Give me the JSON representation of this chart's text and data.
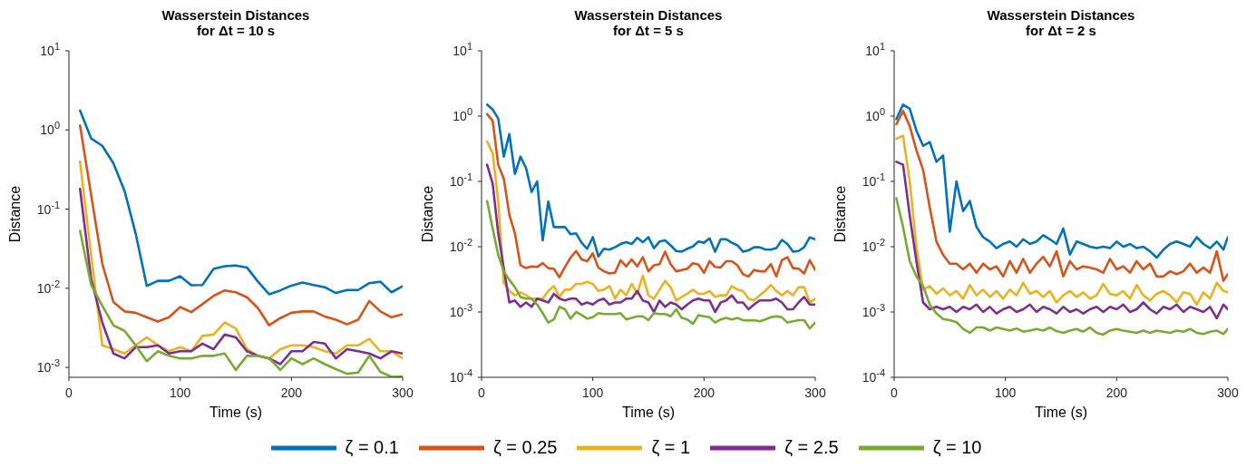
{
  "chart_data": [
    {
      "type": "line",
      "title": "Wasserstein Distances\nfor Δt = 10 s",
      "xlabel": "Time (s)",
      "ylabel": "Distance",
      "log": "y",
      "legend": "bottom",
      "xlim": [
        0,
        300
      ],
      "xticks": [
        0,
        100,
        200,
        300
      ],
      "ylim": [
        0.00075,
        10
      ],
      "yticks": [
        {
          "value": 10,
          "label": "10$^{1}$"
        },
        {
          "value": 1,
          "label": "10$^{0}$"
        },
        {
          "value": 0.1,
          "label": "10$^{-1}$"
        },
        {
          "value": 0.01,
          "label": "10$^{-2}$"
        },
        {
          "value": 0.001,
          "label": "10$^{-3}$"
        }
      ],
      "x": [
        10,
        20,
        30,
        40,
        50,
        60,
        70,
        80,
        90,
        100,
        110,
        120,
        130,
        140,
        150,
        160,
        170,
        180,
        190,
        200,
        210,
        220,
        230,
        240,
        250,
        260,
        270,
        280,
        290,
        300
      ],
      "series": [
        {
          "name": "ζ = 0.1",
          "color": "#0072bd",
          "values": [
            1.76,
            0.78,
            0.63,
            0.38,
            0.17,
            0.049,
            0.0107,
            0.0124,
            0.0124,
            0.0142,
            0.0109,
            0.011,
            0.0175,
            0.019,
            0.0194,
            0.0183,
            0.0121,
            0.0084,
            0.0094,
            0.0108,
            0.0118,
            0.011,
            0.0103,
            0.0087,
            0.0095,
            0.0095,
            0.0116,
            0.0121,
            0.0089,
            0.0106
          ]
        },
        {
          "name": "ζ = 0.25",
          "color": "#d95319",
          "values": [
            1.14,
            0.15,
            0.0204,
            0.0067,
            0.0051,
            0.0049,
            0.0043,
            0.0038,
            0.0043,
            0.0058,
            0.005,
            0.0063,
            0.008,
            0.0094,
            0.0089,
            0.0077,
            0.0056,
            0.0034,
            0.0042,
            0.0049,
            0.0051,
            0.0051,
            0.0044,
            0.004,
            0.0035,
            0.004,
            0.0069,
            0.0051,
            0.0043,
            0.0047
          ]
        },
        {
          "name": "ζ = 1",
          "color": "#edb120",
          "values": [
            0.4,
            0.026,
            0.0019,
            0.0017,
            0.0015,
            0.0019,
            0.0024,
            0.0019,
            0.0016,
            0.0018,
            0.0016,
            0.0025,
            0.0026,
            0.0037,
            0.0031,
            0.0017,
            0.0014,
            0.0013,
            0.0017,
            0.0019,
            0.0019,
            0.0018,
            0.0016,
            0.0015,
            0.0019,
            0.0019,
            0.0023,
            0.0016,
            0.0016,
            0.0013
          ]
        },
        {
          "name": "ζ = 2.5",
          "color": "#7e2f8e",
          "values": [
            0.18,
            0.013,
            0.0037,
            0.0015,
            0.0013,
            0.0018,
            0.0018,
            0.0019,
            0.0015,
            0.0016,
            0.0016,
            0.002,
            0.0017,
            0.0026,
            0.0024,
            0.0016,
            0.0014,
            0.0013,
            0.0011,
            0.0016,
            0.0016,
            0.0021,
            0.002,
            0.0013,
            0.0017,
            0.0016,
            0.0015,
            0.0013,
            0.0016,
            0.0015
          ]
        },
        {
          "name": "ζ = 10",
          "color": "#77ac30",
          "values": [
            0.053,
            0.011,
            0.006,
            0.0034,
            0.0029,
            0.0019,
            0.0012,
            0.0016,
            0.0014,
            0.0013,
            0.0013,
            0.0014,
            0.0014,
            0.0015,
            0.00093,
            0.0014,
            0.0014,
            0.0013,
            0.00093,
            0.0013,
            0.0011,
            0.0013,
            0.0011,
            0.00095,
            0.00083,
            0.00086,
            0.0014,
            0.00088,
            0.00076,
            0.00077
          ]
        }
      ]
    },
    {
      "type": "line",
      "title": "Wasserstein Distances\nfor Δt = 5 s",
      "xlabel": "Time (s)",
      "ylabel": "Distance",
      "log": "y",
      "xlim": [
        0,
        300
      ],
      "xticks": [
        0,
        100,
        200,
        300
      ],
      "ylim": [
        0.0001,
        10
      ],
      "yticks": [
        {
          "value": 10,
          "label": "10$^{1}$"
        },
        {
          "value": 1,
          "label": "10$^{0}$"
        },
        {
          "value": 0.1,
          "label": "10$^{-1}$"
        },
        {
          "value": 0.01,
          "label": "10$^{-2}$"
        },
        {
          "value": 0.001,
          "label": "10$^{-3}$"
        },
        {
          "value": 0.0001,
          "label": "10$^{-4}$"
        }
      ],
      "x": [
        5,
        10,
        15,
        20,
        25,
        30,
        35,
        40,
        45,
        50,
        55,
        60,
        65,
        70,
        75,
        80,
        85,
        90,
        95,
        100,
        105,
        110,
        115,
        120,
        125,
        130,
        135,
        140,
        145,
        150,
        155,
        160,
        165,
        170,
        175,
        180,
        185,
        190,
        195,
        200,
        205,
        210,
        215,
        220,
        225,
        230,
        235,
        240,
        245,
        250,
        255,
        260,
        265,
        270,
        275,
        280,
        285,
        290,
        295,
        300
      ],
      "series": [
        {
          "color": "#0072bd",
          "values": [
            1.5,
            1.26,
            0.92,
            0.24,
            0.53,
            0.13,
            0.24,
            0.16,
            0.069,
            0.1,
            0.0125,
            0.049,
            0.02,
            0.02,
            0.02,
            0.0155,
            0.016,
            0.0115,
            0.0093,
            0.014,
            0.0071,
            0.0093,
            0.009,
            0.0098,
            0.011,
            0.0117,
            0.011,
            0.0137,
            0.0117,
            0.014,
            0.0095,
            0.012,
            0.0125,
            0.0105,
            0.0086,
            0.0084,
            0.0093,
            0.0101,
            0.012,
            0.0115,
            0.0134,
            0.0084,
            0.013,
            0.013,
            0.0115,
            0.0105,
            0.0084,
            0.0088,
            0.0098,
            0.0098,
            0.0091,
            0.009,
            0.0095,
            0.0127,
            0.011,
            0.0084,
            0.0086,
            0.0098,
            0.0139,
            0.013
          ]
        },
        {
          "color": "#d95319",
          "values": [
            1.07,
            0.85,
            0.18,
            0.11,
            0.031,
            0.016,
            0.0052,
            0.0047,
            0.005,
            0.0049,
            0.0056,
            0.0047,
            0.0046,
            0.0034,
            0.0049,
            0.0068,
            0.0086,
            0.0064,
            0.006,
            0.0079,
            0.0048,
            0.0042,
            0.0039,
            0.004,
            0.0062,
            0.005,
            0.0064,
            0.005,
            0.0069,
            0.0042,
            0.0052,
            0.0054,
            0.0084,
            0.0054,
            0.0042,
            0.0044,
            0.0046,
            0.0056,
            0.0053,
            0.004,
            0.006,
            0.0049,
            0.0048,
            0.006,
            0.006,
            0.0052,
            0.0038,
            0.0035,
            0.0044,
            0.0042,
            0.0042,
            0.0054,
            0.0035,
            0.0062,
            0.0069,
            0.0047,
            0.0046,
            0.0039,
            0.0062,
            0.0044
          ]
        },
        {
          "color": "#edb120",
          "values": [
            0.41,
            0.27,
            0.05,
            0.0028,
            0.0021,
            0.0018,
            0.002,
            0.0018,
            0.0016,
            0.0016,
            0.0016,
            0.0021,
            0.0025,
            0.0017,
            0.0022,
            0.0022,
            0.0027,
            0.0027,
            0.0029,
            0.0027,
            0.0021,
            0.0022,
            0.0025,
            0.0016,
            0.0022,
            0.0018,
            0.0027,
            0.0019,
            0.0036,
            0.0018,
            0.0016,
            0.0022,
            0.003,
            0.0024,
            0.0015,
            0.0017,
            0.0019,
            0.0022,
            0.0019,
            0.0019,
            0.0021,
            0.0017,
            0.0018,
            0.0018,
            0.0025,
            0.0022,
            0.0021,
            0.0016,
            0.0015,
            0.0018,
            0.0021,
            0.0026,
            0.0021,
            0.0018,
            0.0021,
            0.0018,
            0.0024,
            0.0024,
            0.0014,
            0.0016
          ]
        },
        {
          "color": "#7e2f8e",
          "values": [
            0.18,
            0.093,
            0.016,
            0.0047,
            0.0014,
            0.0015,
            0.0012,
            0.0014,
            0.0012,
            0.0016,
            0.0015,
            0.0014,
            0.0019,
            0.0016,
            0.0015,
            0.0016,
            0.0016,
            0.0013,
            0.0014,
            0.0013,
            0.0015,
            0.0016,
            0.0013,
            0.0014,
            0.0014,
            0.0016,
            0.0016,
            0.0021,
            0.0015,
            0.0014,
            0.001,
            0.0015,
            0.0012,
            0.0014,
            0.0013,
            0.0011,
            0.0013,
            0.0015,
            0.0016,
            0.0015,
            0.0015,
            0.001,
            0.0014,
            0.0015,
            0.0018,
            0.0014,
            0.0014,
            0.0011,
            0.0013,
            0.0015,
            0.0015,
            0.0015,
            0.0016,
            0.0014,
            0.0011,
            0.0011,
            0.0014,
            0.0017,
            0.0013,
            0.0013
          ]
        },
        {
          "color": "#77ac30",
          "values": [
            0.05,
            0.019,
            0.0075,
            0.0042,
            0.0031,
            0.0024,
            0.0017,
            0.0016,
            0.0016,
            0.0013,
            0.00096,
            0.00069,
            0.00077,
            0.0012,
            0.0011,
            0.00079,
            0.001,
            0.0009,
            0.00079,
            0.00083,
            0.00096,
            0.00093,
            0.00093,
            0.00093,
            0.00096,
            0.00077,
            0.00081,
            0.00086,
            0.00086,
            0.00075,
            0.00096,
            0.00093,
            0.00093,
            0.00086,
            0.0011,
            0.00081,
            0.00077,
            0.00066,
            0.00089,
            0.00086,
            0.00083,
            0.00069,
            0.00077,
            0.00081,
            0.00077,
            0.00081,
            0.00075,
            0.00074,
            0.00075,
            0.00072,
            0.00077,
            0.00083,
            0.00086,
            0.00083,
            0.00069,
            0.00072,
            0.00075,
            0.00075,
            0.00056,
            0.00069
          ]
        }
      ]
    },
    {
      "type": "line",
      "title": "Wasserstein Distances\nfor Δt = 2 s",
      "xlabel": "Time (s)",
      "ylabel": "Distance",
      "log": "y",
      "xlim": [
        0,
        300
      ],
      "xticks": [
        0,
        100,
        200,
        300
      ],
      "ylim": [
        0.0001,
        10
      ],
      "yticks": [
        {
          "value": 10,
          "label": "10$^{1}$"
        },
        {
          "value": 1,
          "label": "10$^{0}$"
        },
        {
          "value": 0.1,
          "label": "10$^{-1}$"
        },
        {
          "value": 0.01,
          "label": "10$^{-2}$"
        },
        {
          "value": 0.001,
          "label": "10$^{-3}$"
        },
        {
          "value": 0.0001,
          "label": "10$^{-4}$"
        }
      ],
      "x": [
        2,
        8,
        14,
        20,
        26,
        32,
        38,
        44,
        50,
        56,
        62,
        68,
        74,
        80,
        86,
        92,
        98,
        104,
        110,
        116,
        122,
        128,
        134,
        140,
        146,
        152,
        158,
        164,
        170,
        176,
        182,
        188,
        194,
        200,
        206,
        212,
        218,
        224,
        230,
        236,
        242,
        248,
        254,
        260,
        266,
        272,
        278,
        284,
        290,
        296,
        300
      ],
      "series": [
        {
          "color": "#0072bd",
          "values": [
            0.9,
            1.5,
            1.3,
            0.6,
            0.35,
            0.4,
            0.2,
            0.25,
            0.017,
            0.1,
            0.035,
            0.05,
            0.02,
            0.014,
            0.012,
            0.0095,
            0.011,
            0.012,
            0.01,
            0.013,
            0.011,
            0.012,
            0.015,
            0.013,
            0.011,
            0.019,
            0.0076,
            0.012,
            0.011,
            0.01,
            0.0095,
            0.01,
            0.0095,
            0.012,
            0.01,
            0.011,
            0.0095,
            0.01,
            0.0085,
            0.0068,
            0.009,
            0.011,
            0.012,
            0.011,
            0.01,
            0.014,
            0.011,
            0.0095,
            0.012,
            0.009,
            0.014
          ]
        },
        {
          "color": "#d95319",
          "values": [
            0.75,
            1.2,
            0.7,
            0.3,
            0.15,
            0.04,
            0.012,
            0.0075,
            0.0055,
            0.0055,
            0.0045,
            0.0055,
            0.004,
            0.0055,
            0.0045,
            0.005,
            0.0035,
            0.006,
            0.004,
            0.0065,
            0.004,
            0.0055,
            0.007,
            0.005,
            0.0085,
            0.0035,
            0.006,
            0.0045,
            0.005,
            0.0048,
            0.0045,
            0.004,
            0.0065,
            0.0045,
            0.005,
            0.004,
            0.006,
            0.0045,
            0.0055,
            0.0035,
            0.0035,
            0.0042,
            0.0038,
            0.0042,
            0.0055,
            0.004,
            0.0048,
            0.004,
            0.0085,
            0.003,
            0.0038
          ]
        },
        {
          "color": "#edb120",
          "values": [
            0.45,
            0.5,
            0.1,
            0.01,
            0.0022,
            0.0025,
            0.0019,
            0.0023,
            0.0018,
            0.0021,
            0.0016,
            0.0026,
            0.0018,
            0.0022,
            0.0017,
            0.0021,
            0.0016,
            0.0022,
            0.0018,
            0.0028,
            0.0019,
            0.0021,
            0.0017,
            0.0021,
            0.0014,
            0.0018,
            0.0021,
            0.0017,
            0.002,
            0.0016,
            0.0018,
            0.0027,
            0.0019,
            0.0018,
            0.0021,
            0.0016,
            0.0026,
            0.0018,
            0.0015,
            0.0019,
            0.0021,
            0.0018,
            0.0014,
            0.002,
            0.0019,
            0.0013,
            0.002,
            0.0016,
            0.0028,
            0.0021,
            0.002
          ]
        },
        {
          "color": "#7e2f8e",
          "values": [
            0.2,
            0.18,
            0.03,
            0.006,
            0.0014,
            0.0011,
            0.0012,
            0.0011,
            0.0012,
            0.001,
            0.0012,
            0.0011,
            0.0013,
            0.001,
            0.0012,
            0.00095,
            0.0011,
            0.0012,
            0.001,
            0.0011,
            0.0013,
            0.001,
            0.0012,
            0.0011,
            0.00095,
            0.0012,
            0.001,
            0.0011,
            0.00095,
            0.0011,
            0.0012,
            0.001,
            0.0012,
            0.0011,
            0.0013,
            0.001,
            0.0011,
            0.0014,
            0.0011,
            0.00095,
            0.0012,
            0.0011,
            0.0013,
            0.001,
            0.0012,
            0.0011,
            0.001,
            0.0012,
            0.0008,
            0.0013,
            0.0011
          ]
        },
        {
          "color": "#77ac30",
          "values": [
            0.055,
            0.02,
            0.006,
            0.0035,
            0.0025,
            0.0013,
            0.00095,
            0.00078,
            0.00075,
            0.0007,
            0.00055,
            0.00048,
            0.00058,
            0.00058,
            0.00052,
            0.00058,
            0.00055,
            0.00052,
            0.00056,
            0.0005,
            0.00052,
            0.00055,
            0.00052,
            0.00058,
            0.00051,
            0.00048,
            0.00052,
            0.00055,
            0.0005,
            0.00058,
            0.00048,
            0.00045,
            0.00052,
            0.00055,
            0.00052,
            0.0005,
            0.00048,
            0.00052,
            0.00048,
            0.00052,
            0.0005,
            0.00048,
            0.00052,
            0.0005,
            0.00055,
            0.00048,
            0.00046,
            0.0005,
            0.00052,
            0.00046,
            0.00055
          ]
        }
      ]
    }
  ]
}
